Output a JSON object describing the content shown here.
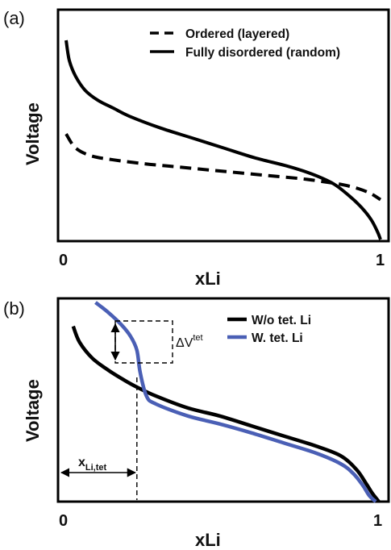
{
  "chart_data": [
    {
      "type": "line",
      "panel_label": "(a)",
      "xlabel": "xLi",
      "ylabel": "Voltage",
      "x_ticks": [
        "0",
        "1"
      ],
      "xlim": [
        0,
        1
      ],
      "ylim": [
        0,
        1
      ],
      "legend_position": "top-right",
      "series": [
        {
          "name": "Ordered (layered)",
          "style": "dashed",
          "color": "#000000",
          "x": [
            0,
            0.03,
            0.08,
            0.15,
            0.25,
            0.35,
            0.45,
            0.55,
            0.65,
            0.75,
            0.82,
            0.88,
            0.93,
            0.97,
            1.0
          ],
          "y": [
            0.53,
            0.46,
            0.42,
            0.4,
            0.38,
            0.365,
            0.35,
            0.335,
            0.32,
            0.305,
            0.29,
            0.275,
            0.255,
            0.23,
            0.2
          ]
        },
        {
          "name": "Fully disordered (random)",
          "style": "solid",
          "color": "#000000",
          "x": [
            0,
            0.01,
            0.03,
            0.06,
            0.1,
            0.15,
            0.2,
            0.3,
            0.4,
            0.5,
            0.6,
            0.7,
            0.78,
            0.85,
            0.9,
            0.94,
            0.97,
            0.99,
            1.0
          ],
          "y": [
            1.0,
            0.9,
            0.82,
            0.75,
            0.7,
            0.66,
            0.62,
            0.56,
            0.51,
            0.46,
            0.41,
            0.37,
            0.33,
            0.28,
            0.22,
            0.16,
            0.1,
            0.04,
            0.0
          ]
        }
      ]
    },
    {
      "type": "line",
      "panel_label": "(b)",
      "xlabel": "xLi",
      "ylabel": "Voltage",
      "x_ticks": [
        "0",
        "1"
      ],
      "xlim": [
        0,
        1
      ],
      "ylim": [
        0,
        1
      ],
      "legend_position": "top-right",
      "annotations": {
        "delta_v_base": "ΔV",
        "delta_v_sup": "tet",
        "x_tet_base": "x",
        "x_tet_sub": "Li,tet",
        "x_tet_value": 0.24
      },
      "series": [
        {
          "name": "W/o tet. Li",
          "color": "#000000",
          "x": [
            0.04,
            0.06,
            0.1,
            0.15,
            0.2,
            0.24,
            0.3,
            0.4,
            0.5,
            0.6,
            0.7,
            0.8,
            0.88,
            0.93,
            0.96,
            0.98,
            1.0
          ],
          "y": [
            0.88,
            0.8,
            0.72,
            0.66,
            0.61,
            0.575,
            0.53,
            0.47,
            0.43,
            0.38,
            0.33,
            0.28,
            0.23,
            0.16,
            0.09,
            0.04,
            0.0
          ]
        },
        {
          "name": "W. tet. Li",
          "color": "#4a5fb5",
          "x": [
            0.11,
            0.15,
            0.19,
            0.22,
            0.24,
            0.25,
            0.27,
            0.3,
            0.4,
            0.5,
            0.6,
            0.7,
            0.8,
            0.88,
            0.92,
            0.95,
            0.97,
            0.99
          ],
          "y": [
            1.0,
            0.95,
            0.89,
            0.83,
            0.76,
            0.65,
            0.53,
            0.49,
            0.43,
            0.39,
            0.345,
            0.295,
            0.245,
            0.19,
            0.14,
            0.08,
            0.03,
            0.0
          ]
        }
      ]
    }
  ]
}
